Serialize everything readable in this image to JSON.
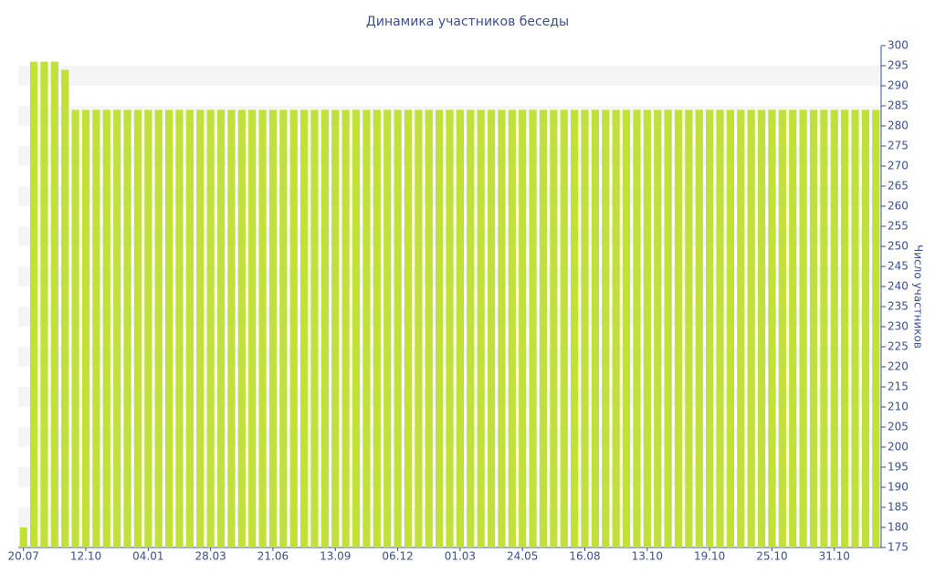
{
  "chart_data": {
    "type": "bar",
    "title": "Динамика участников беседы",
    "y_axis_label": "Число участников",
    "categories": [
      "20.07",
      null,
      null,
      null,
      null,
      null,
      "12.10",
      null,
      null,
      null,
      null,
      null,
      "04.01",
      null,
      null,
      null,
      null,
      null,
      "28.03",
      null,
      null,
      null,
      null,
      null,
      "21.06",
      null,
      null,
      null,
      null,
      null,
      "13.09",
      null,
      null,
      null,
      null,
      null,
      "06.12",
      null,
      null,
      null,
      null,
      null,
      "01.03",
      null,
      null,
      null,
      null,
      null,
      "24.05",
      null,
      null,
      null,
      null,
      null,
      "16.08",
      null,
      null,
      null,
      null,
      null,
      "13.10",
      null,
      null,
      null,
      null,
      null,
      "19.10",
      null,
      null,
      null,
      null,
      null,
      "25.10",
      null,
      null,
      null,
      null,
      null,
      "31.10",
      null,
      null,
      null,
      null
    ],
    "values": [
      180,
      296,
      296,
      296,
      294,
      284,
      284,
      284,
      284,
      284,
      284,
      284,
      284,
      284,
      284,
      284,
      284,
      284,
      284,
      284,
      284,
      284,
      284,
      284,
      284,
      284,
      284,
      284,
      284,
      284,
      284,
      284,
      284,
      284,
      284,
      284,
      284,
      284,
      284,
      284,
      284,
      284,
      284,
      284,
      284,
      284,
      284,
      284,
      284,
      284,
      284,
      284,
      284,
      284,
      284,
      284,
      284,
      284,
      284,
      284,
      284,
      284,
      284,
      284,
      284,
      284,
      284,
      284,
      284,
      284,
      284,
      284,
      284,
      284,
      284,
      284,
      284,
      284,
      284,
      284,
      284,
      284,
      284
    ],
    "color": "#c2e03a",
    "ylim": [
      175,
      300
    ],
    "yticks": [
      175,
      180,
      185,
      190,
      195,
      200,
      205,
      210,
      215,
      220,
      225,
      230,
      235,
      240,
      245,
      250,
      255,
      260,
      265,
      270,
      275,
      280,
      285,
      290,
      295,
      300
    ],
    "y_axis_side": "right",
    "grid": "bands"
  }
}
